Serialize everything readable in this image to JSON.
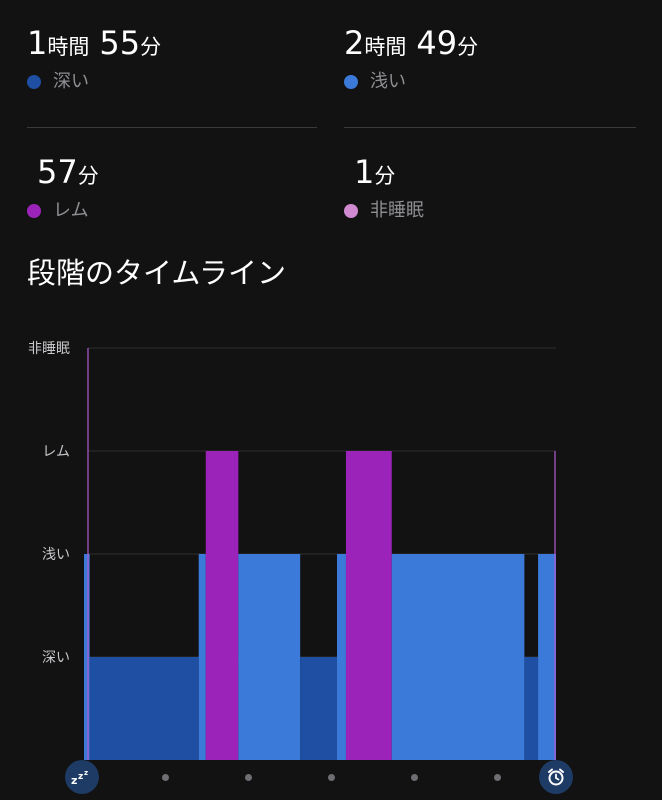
{
  "summary": {
    "deep": {
      "hours": "1",
      "hours_unit": "時間",
      "minutes": "55",
      "minutes_unit": "分",
      "label": "深い",
      "color": "#1f4fa3"
    },
    "light": {
      "hours": "2",
      "hours_unit": "時間",
      "minutes": "49",
      "minutes_unit": "分",
      "label": "浅い",
      "color": "#3b7ad9"
    },
    "rem": {
      "minutes": "57",
      "minutes_unit": "分",
      "label": "レム",
      "color": "#9b23b9"
    },
    "awake": {
      "minutes": "1",
      "minutes_unit": "分",
      "label": "非睡眠",
      "color": "#d08ad0"
    }
  },
  "timeline": {
    "title": "段階のタイムライン"
  },
  "chart_data": {
    "type": "step-area",
    "y_levels": [
      "深い",
      "浅い",
      "レム",
      "非睡眠"
    ],
    "y_tick_labels": [
      "非睡眠",
      "レム",
      "浅い",
      "深い"
    ],
    "x_range": [
      0,
      100
    ],
    "segments": [
      {
        "start": 0,
        "end": 1.2,
        "stage": "浅い"
      },
      {
        "start": 1.2,
        "end": 24.3,
        "stage": "深い"
      },
      {
        "start": 24.3,
        "end": 25.8,
        "stage": "浅い"
      },
      {
        "start": 25.8,
        "end": 32.7,
        "stage": "レム"
      },
      {
        "start": 32.7,
        "end": 45.8,
        "stage": "浅い"
      },
      {
        "start": 45.8,
        "end": 53.6,
        "stage": "深い"
      },
      {
        "start": 53.6,
        "end": 55.5,
        "stage": "浅い"
      },
      {
        "start": 55.5,
        "end": 65.2,
        "stage": "レム"
      },
      {
        "start": 65.2,
        "end": 93.3,
        "stage": "浅い"
      },
      {
        "start": 93.3,
        "end": 96.2,
        "stage": "深い"
      },
      {
        "start": 96.2,
        "end": 100,
        "stage": "浅い"
      }
    ],
    "stage_colors": {
      "深い": "#1f4fa3",
      "浅い": "#3b7ad9",
      "レム": "#9b23b9",
      "非睡眠": "#d08ad0"
    },
    "grid": true,
    "start_marker_icon": "sleep-zzz-icon",
    "end_marker_icon": "alarm-clock-icon",
    "pager_dots": 5
  }
}
